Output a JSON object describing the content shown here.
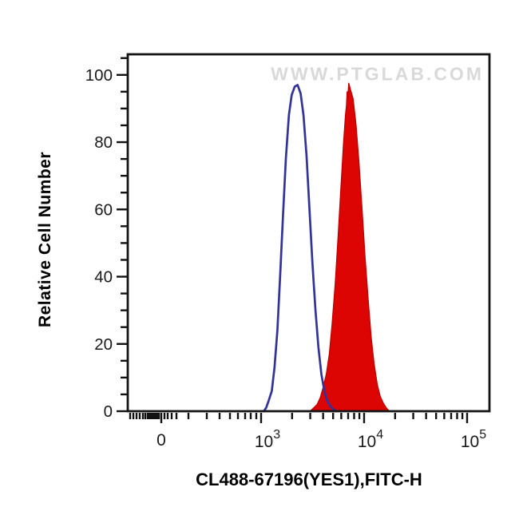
{
  "watermark": "WWW.PTGLAB.COM",
  "y_axis": {
    "title": "Relative Cell Number",
    "major_tick_labels": [
      "0",
      "20",
      "40",
      "60",
      "80",
      "100"
    ],
    "major_step": 20,
    "minor_step": 5,
    "range": [
      0,
      106
    ]
  },
  "x_axis": {
    "title": "CL488-67196(YES1),FITC-H",
    "scale": "biexponential-log",
    "tick_labels": [
      {
        "text": "0",
        "value": 0
      },
      {
        "base": "10",
        "exp": "3",
        "value": 1000
      },
      {
        "base": "10",
        "exp": "4",
        "value": 10000
      },
      {
        "base": "10",
        "exp": "5",
        "value": 100000
      }
    ],
    "range": [
      0,
      170000
    ]
  },
  "chart_data": {
    "type": "area",
    "title": "",
    "xlabel": "CL488-67196(YES1),FITC-H",
    "ylabel": "Relative Cell Number",
    "x_scale": "log decades 10^3 to 10^5 with compressed linear region near 0",
    "ylim": [
      0,
      106
    ],
    "grid": false,
    "legend": "none",
    "watermark": "WWW.PTGLAB.COM",
    "series": [
      {
        "name": "red-filled-histogram",
        "style": "filled",
        "color": "#c40000",
        "fill_color": "#dd0404",
        "peak_x": 7100,
        "peak_y": 97.5,
        "points": [
          [
            3000,
            0
          ],
          [
            3250,
            1
          ],
          [
            3500,
            2
          ],
          [
            3750,
            4
          ],
          [
            4000,
            7
          ],
          [
            4300,
            11
          ],
          [
            4600,
            17
          ],
          [
            4900,
            26
          ],
          [
            5250,
            38
          ],
          [
            5600,
            52
          ],
          [
            5950,
            66
          ],
          [
            6300,
            79
          ],
          [
            6600,
            88
          ],
          [
            6750,
            91
          ],
          [
            6850,
            95
          ],
          [
            6950,
            93
          ],
          [
            7100,
            97.5
          ],
          [
            7300,
            96
          ],
          [
            7800,
            93
          ],
          [
            8350,
            85
          ],
          [
            8900,
            74
          ],
          [
            9550,
            60
          ],
          [
            10200,
            46
          ],
          [
            10950,
            33
          ],
          [
            11700,
            22
          ],
          [
            12500,
            14
          ],
          [
            13400,
            8
          ],
          [
            14300,
            4.5
          ],
          [
            15300,
            2.5
          ],
          [
            16400,
            1
          ],
          [
            17500,
            0
          ]
        ]
      },
      {
        "name": "blue-open-histogram",
        "style": "open",
        "color": "#32329b",
        "fill_color": "none",
        "peak_x": 2260,
        "peak_y": 97,
        "points": [
          [
            1060,
            0
          ],
          [
            1120,
            1
          ],
          [
            1180,
            3
          ],
          [
            1270,
            6
          ],
          [
            1350,
            13
          ],
          [
            1440,
            24
          ],
          [
            1530,
            40
          ],
          [
            1630,
            58
          ],
          [
            1740,
            75
          ],
          [
            1860,
            88
          ],
          [
            1980,
            94
          ],
          [
            2120,
            96.5
          ],
          [
            2260,
            97
          ],
          [
            2420,
            94.5
          ],
          [
            2580,
            88
          ],
          [
            2760,
            76
          ],
          [
            2950,
            60
          ],
          [
            3150,
            44
          ],
          [
            3370,
            30
          ],
          [
            3600,
            19
          ],
          [
            3850,
            11
          ],
          [
            4110,
            6
          ],
          [
            4400,
            3
          ],
          [
            4700,
            1.5
          ],
          [
            5050,
            0.5
          ],
          [
            5400,
            0
          ]
        ]
      }
    ]
  }
}
